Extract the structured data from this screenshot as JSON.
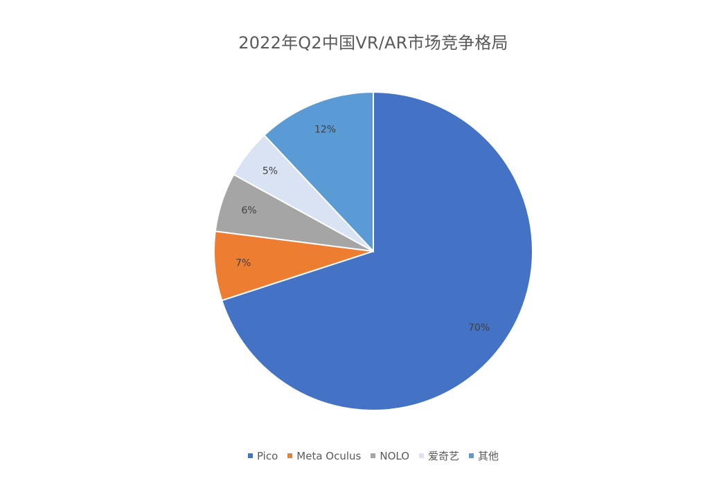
{
  "chart_data": {
    "type": "pie",
    "title": "2022年Q2中国VR/AR市场竞争格局",
    "legend_position": "bottom",
    "slices": [
      {
        "label": "Pico",
        "value": 70,
        "display": "70%",
        "color": "#4472C4"
      },
      {
        "label": "Meta Oculus",
        "value": 7,
        "display": "7%",
        "color": "#ED7D31"
      },
      {
        "label": "NOLO",
        "value": 6,
        "display": "6%",
        "color": "#A5A5A5"
      },
      {
        "label": "爱奇艺",
        "value": 5,
        "display": "5%",
        "color": "#DAE3F3"
      },
      {
        "label": "其他",
        "value": 12,
        "display": "12%",
        "color": "#5B9BD5"
      }
    ]
  }
}
